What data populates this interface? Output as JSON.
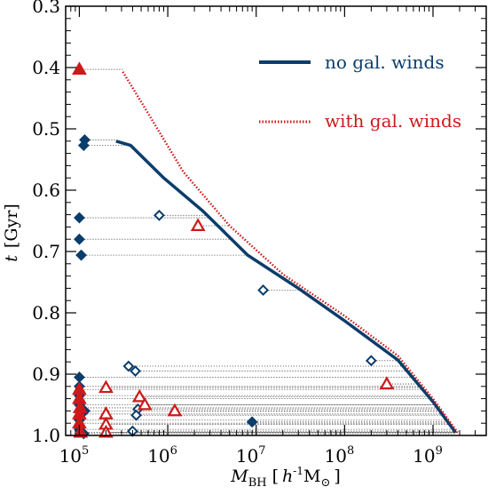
{
  "chart_data": {
    "type": "line",
    "xlabel": {
      "main": "M",
      "sub": "BH",
      "unit_pre": "[",
      "unit_h": "h",
      "unit_exp": "-1",
      "unit_M": "M",
      "unit_sun": "⊙",
      "unit_post": "]"
    },
    "ylabel": {
      "var": "t",
      "unit": "[Gyr]"
    },
    "x_scale": "log",
    "xlim": [
      70000,
      4000000000
    ],
    "ylim": [
      1.0,
      0.3
    ],
    "y_inverted": true,
    "x_ticks": [
      {
        "value": 100000,
        "base": "10",
        "exp": "5"
      },
      {
        "value": 1000000,
        "base": "10",
        "exp": "6"
      },
      {
        "value": 10000000,
        "base": "10",
        "exp": "7"
      },
      {
        "value": 100000000,
        "base": "10",
        "exp": "8"
      },
      {
        "value": 1000000000,
        "base": "10",
        "exp": "9"
      }
    ],
    "y_ticks": [
      "0.3",
      "0.4",
      "0.5",
      "0.6",
      "0.7",
      "0.8",
      "0.9",
      "1.0"
    ],
    "legend": {
      "position": "top-right"
    },
    "series": [
      {
        "name": "no gal. winds",
        "color": "#0b3d6b",
        "style": "solid",
        "points": [
          [
            260000,
            0.52
          ],
          [
            380000,
            0.527
          ],
          [
            900000,
            0.58
          ],
          [
            2500000,
            0.634
          ],
          [
            8000000,
            0.706
          ],
          [
            30000000,
            0.76
          ],
          [
            100000000,
            0.813
          ],
          [
            400000000,
            0.877
          ],
          [
            1000000000,
            0.945
          ],
          [
            1800000000,
            0.995
          ]
        ]
      },
      {
        "name": "with gal. winds",
        "color": "#cc1a1a",
        "style": "dotted",
        "points": [
          [
            310000,
            0.407
          ],
          [
            500000,
            0.456
          ],
          [
            1500000,
            0.57
          ],
          [
            5000000,
            0.658
          ],
          [
            20000000,
            0.737
          ],
          [
            100000000,
            0.805
          ],
          [
            400000000,
            0.87
          ],
          [
            1000000000,
            0.94
          ],
          [
            1900000000,
            0.995
          ]
        ]
      }
    ],
    "markers_no_winds": [
      {
        "x": 100000,
        "y": 0.645
      },
      {
        "x": 100000,
        "y": 0.68
      },
      {
        "x": 105000,
        "y": 0.706
      },
      {
        "x": 115000,
        "y": 0.518
      },
      {
        "x": 112000,
        "y": 0.527
      },
      {
        "x": 800000,
        "y": 0.641
      },
      {
        "x": 12000000,
        "y": 0.763
      },
      {
        "x": 360000,
        "y": 0.887
      },
      {
        "x": 430000,
        "y": 0.895
      },
      {
        "x": 200000000,
        "y": 0.878
      },
      {
        "x": 100000,
        "y": 0.905
      },
      {
        "x": 100000,
        "y": 0.92
      },
      {
        "x": 100000,
        "y": 0.935
      },
      {
        "x": 100000,
        "y": 0.95
      },
      {
        "x": 115000,
        "y": 0.96
      },
      {
        "x": 100000,
        "y": 0.975
      },
      {
        "x": 100000,
        "y": 0.99
      },
      {
        "x": 112000,
        "y": 0.997
      },
      {
        "x": 460000,
        "y": 0.957
      },
      {
        "x": 440000,
        "y": 0.967
      },
      {
        "x": 9000000,
        "y": 0.978
      },
      {
        "x": 400000,
        "y": 0.993
      }
    ],
    "markers_with_winds": [
      {
        "x": 100000,
        "y": 0.403
      },
      {
        "x": 2200000,
        "y": 0.658
      },
      {
        "x": 300000000,
        "y": 0.916
      },
      {
        "x": 200000,
        "y": 0.922
      },
      {
        "x": 100000,
        "y": 0.925
      },
      {
        "x": 100000,
        "y": 0.94
      },
      {
        "x": 102000,
        "y": 0.955
      },
      {
        "x": 100000,
        "y": 0.965
      },
      {
        "x": 100000,
        "y": 0.98
      },
      {
        "x": 103000,
        "y": 0.995
      },
      {
        "x": 480000,
        "y": 0.937
      },
      {
        "x": 550000,
        "y": 0.95
      },
      {
        "x": 200000,
        "y": 0.965
      },
      {
        "x": 1200000,
        "y": 0.96
      },
      {
        "x": 200000,
        "y": 0.982
      },
      {
        "x": 200000,
        "y": 0.995
      }
    ]
  }
}
